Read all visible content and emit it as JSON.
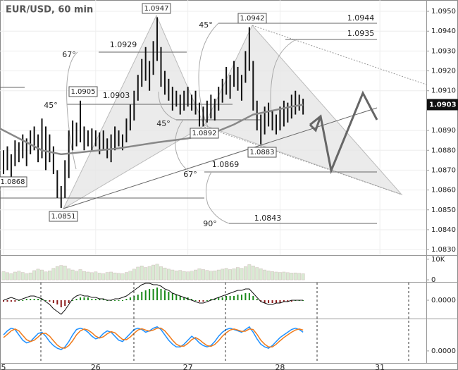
{
  "title": "EUR/USD, 60 min",
  "annotations": [
    "1.0947",
    "1.0942",
    "1.0905",
    "1.0892",
    "1.0883",
    "1.0851",
    "1.0868",
    "1.0929",
    "1.0903",
    "1.0944",
    "1.0935",
    "1.0869",
    "1.0843",
    "67°",
    "45°",
    "45°",
    "45°",
    "67°",
    "90°"
  ],
  "chart_data": [
    {
      "type": "ohlc",
      "color": "#111",
      "xlim": [
        -0.92,
        110.08
      ],
      "xticks": [
        {
          "value": 0,
          "label": "5"
        },
        {
          "value": 24,
          "label": "26"
        },
        {
          "value": 48,
          "label": "27"
        },
        {
          "value": 72,
          "label": "28"
        },
        {
          "value": 98,
          "label": "31"
        }
      ],
      "ylim": [
        1.08272,
        1.09557
      ],
      "yticks": [
        {
          "value": 1.083,
          "label": "1.0830"
        },
        {
          "value": 1.084,
          "label": "1.0840"
        },
        {
          "value": 1.085,
          "label": "1.0850"
        },
        {
          "value": 1.086,
          "label": "1.0860"
        },
        {
          "value": 1.087,
          "label": "1.0870"
        },
        {
          "value": 1.088,
          "label": "1.0880"
        },
        {
          "value": 1.089,
          "label": "1.0890"
        },
        {
          "value": 1.091,
          "label": "1.0910"
        },
        {
          "value": 1.092,
          "label": "1.0920"
        },
        {
          "value": 1.093,
          "label": "1.0930"
        },
        {
          "value": 1.094,
          "label": "1.0940"
        },
        {
          "value": 1.095,
          "label": "1.0950"
        }
      ],
      "last_price": {
        "value": 1.0903,
        "label": "1.0903"
      },
      "grid": true,
      "low": [
        1.0868,
        1.087,
        1.0866,
        1.0872,
        1.0874,
        1.0876,
        1.0872,
        1.0878,
        1.088,
        1.0874,
        1.0876,
        1.087,
        1.0874,
        1.0868,
        1.0856,
        1.0851,
        1.0856,
        1.0866,
        1.088,
        1.0882,
        1.0884,
        1.088,
        1.0882,
        1.088,
        1.0882,
        1.0878,
        1.088,
        1.0876,
        1.0874,
        1.088,
        1.0882,
        1.088,
        1.0884,
        1.089,
        1.0895,
        1.0905,
        1.0912,
        1.0915,
        1.091,
        1.0918,
        1.0925,
        1.0912,
        1.0908,
        1.0905,
        1.09,
        1.0902,
        1.0898,
        1.09,
        1.0902,
        1.09,
        1.0898,
        1.0892,
        1.0892,
        1.0894,
        1.0896,
        1.0895,
        1.09,
        1.0904,
        1.0908,
        1.0906,
        1.0912,
        1.091,
        1.0905,
        1.0914,
        1.092,
        1.09,
        1.089,
        1.0883,
        1.0888,
        1.0892,
        1.089,
        1.0888,
        1.089,
        1.0892,
        1.0894,
        1.0896,
        1.0898,
        1.09,
        1.0898
      ],
      "high": [
        1.088,
        1.0882,
        1.0878,
        1.0885,
        1.0884,
        1.0888,
        1.0886,
        1.089,
        1.0892,
        1.0888,
        1.0896,
        1.0892,
        1.0888,
        1.0882,
        1.087,
        1.0862,
        1.0875,
        1.089,
        1.0895,
        1.0894,
        1.0905,
        1.0892,
        1.089,
        1.0891,
        1.089,
        1.0889,
        1.089,
        1.0886,
        1.0888,
        1.0892,
        1.089,
        1.0888,
        1.0896,
        1.0903,
        1.091,
        1.0918,
        1.0926,
        1.0932,
        1.0925,
        1.0935,
        1.0947,
        1.0932,
        1.092,
        1.0916,
        1.0912,
        1.091,
        1.0908,
        1.091,
        1.0912,
        1.0908,
        1.091,
        1.0904,
        1.0902,
        1.0905,
        1.0908,
        1.0906,
        1.0912,
        1.0916,
        1.0922,
        1.0918,
        1.0925,
        1.0922,
        1.0918,
        1.093,
        1.0942,
        1.0925,
        1.0905,
        1.0898,
        1.0902,
        1.0904,
        1.09,
        1.0898,
        1.0902,
        1.0905,
        1.0904,
        1.0908,
        1.091,
        1.0908,
        1.0906
      ],
      "ma": {
        "color": "#888",
        "x": [
          -1,
          5,
          10,
          15,
          20,
          30,
          40,
          48,
          55,
          60,
          65,
          70,
          75,
          78
        ],
        "values": [
          1.0891,
          1.0885,
          1.088,
          1.0878,
          1.0879,
          1.0881,
          1.0884,
          1.0886,
          1.0889,
          1.0893,
          1.0898,
          1.09,
          1.0902,
          1.0903
        ]
      }
    },
    {
      "type": "bar",
      "color": "#d9ead3",
      "ylim": [
        -1000,
        12000
      ],
      "yticks": [
        {
          "value": 10000,
          "label": "10K"
        },
        0
      ],
      "values": [
        4000,
        3500,
        3000,
        3800,
        4200,
        3600,
        3000,
        3400,
        4500,
        5200,
        4800,
        3900,
        4400,
        5600,
        6500,
        7000,
        6800,
        5400,
        4800,
        4200,
        5000,
        4100,
        3800,
        3500,
        3900,
        3300,
        3000,
        3600,
        3800,
        3400,
        3200,
        3000,
        3600,
        4200,
        5200,
        6200,
        6800,
        6000,
        6500,
        7200,
        7600,
        6400,
        5800,
        5200,
        4800,
        4400,
        4600,
        4100,
        3900,
        4200,
        4800,
        5400,
        5000,
        4600,
        4200,
        4400,
        4800,
        5200,
        5600,
        5000,
        5400,
        6000,
        5600,
        6400,
        7400,
        6800,
        6000,
        5400,
        4800,
        4400,
        4000,
        3800,
        3600,
        3800,
        3500,
        3300,
        3400,
        3200,
        3000
      ]
    },
    {
      "type": "histogram-line",
      "colors": {
        "up": "#1a8a1a",
        "down": "#8b1a1a",
        "line": "#111"
      },
      "ylim": [
        -0.0013,
        0.0013
      ],
      "yticks": [
        {
          "value": 0,
          "label": "0.0000"
        }
      ],
      "values": [
        -0.0001,
        -0.0001,
        -0.0001,
        -0.0001,
        0,
        0,
        0.0001,
        0.0001,
        0.0001,
        0.0001,
        0.0001,
        0,
        -0.0001,
        -0.0002,
        -0.0003,
        -0.0005,
        -0.0004,
        -0.0002,
        0,
        0.0001,
        0.0002,
        0.0002,
        0.0002,
        0.0001,
        0.0001,
        0.0001,
        0.0001,
        0,
        0,
        0,
        0,
        0,
        0.0001,
        0.0002,
        0.0003,
        0.0004,
        0.0006,
        0.0007,
        0.0008,
        0.0008,
        0.0009,
        0.0008,
        0.0007,
        0.0006,
        0.0005,
        0.0004,
        0.0003,
        0.0002,
        0.0002,
        0.0001,
        0,
        -0.0001,
        -0.0001,
        0,
        0.0001,
        0.0001,
        0.0002,
        0.0002,
        0.0003,
        0.0003,
        0.0003,
        0.0004,
        0.0004,
        0.0005,
        0.0005,
        0.0003,
        0.0001,
        -0.0001,
        -0.0002,
        -0.0002,
        -0.0002,
        -0.0002,
        -0.0002,
        -0.0001,
        -0.0001,
        -0.0001,
        0,
        0,
        0
      ],
      "line": [
        0,
        0.0001,
        0.0002,
        0.0001,
        0,
        0.0001,
        0.0002,
        0.0003,
        0.0003,
        0.0002,
        0.0001,
        -0.0001,
        -0.0003,
        -0.0006,
        -0.0008,
        -0.001,
        -0.0007,
        -0.0003,
        0.0001,
        0.0003,
        0.0004,
        0.0003,
        0.0003,
        0.0002,
        0.0002,
        0.0001,
        0.0001,
        0,
        0,
        0.0001,
        0.0001,
        0.0002,
        0.0003,
        0.0005,
        0.0007,
        0.0009,
        0.0011,
        0.0012,
        0.0012,
        0.0011,
        0.0011,
        0.001,
        0.0008,
        0.0007,
        0.0005,
        0.0004,
        0.0003,
        0.0002,
        0.0001,
        0,
        -0.0001,
        -0.0002,
        -0.0002,
        -0.0001,
        0,
        0.0001,
        0.0002,
        0.0003,
        0.0004,
        0.0005,
        0.0006,
        0.0007,
        0.0007,
        0.0008,
        0.0008,
        0.0005,
        0.0002,
        -0.0001,
        -0.0002,
        -0.0003,
        -0.0003,
        -0.0002,
        -0.0002,
        -0.0001,
        -0.0001,
        0,
        0,
        0,
        0
      ]
    },
    {
      "type": "line",
      "ylim": [
        -45,
        121
      ],
      "yticks": [
        {
          "value": 0,
          "label": "0.0000"
        }
      ],
      "series": [
        {
          "color": "#1e90ff",
          "values": [
            60,
            75,
            85,
            80,
            60,
            40,
            30,
            35,
            50,
            65,
            70,
            55,
            35,
            20,
            10,
            5,
            15,
            35,
            60,
            80,
            85,
            80,
            70,
            55,
            45,
            50,
            65,
            75,
            70,
            55,
            40,
            35,
            50,
            65,
            80,
            85,
            80,
            70,
            75,
            85,
            90,
            80,
            60,
            40,
            25,
            15,
            15,
            25,
            40,
            55,
            45,
            30,
            20,
            15,
            20,
            35,
            55,
            70,
            80,
            85,
            80,
            75,
            70,
            80,
            90,
            70,
            45,
            25,
            15,
            10,
            20,
            35,
            50,
            60,
            70,
            80,
            85,
            80,
            70
          ]
        },
        {
          "color": "#f07a1a",
          "values": [
            50,
            62,
            75,
            82,
            75,
            58,
            42,
            35,
            40,
            52,
            65,
            66,
            55,
            38,
            22,
            12,
            10,
            20,
            38,
            60,
            75,
            82,
            78,
            68,
            55,
            48,
            53,
            64,
            72,
            68,
            55,
            43,
            42,
            52,
            66,
            78,
            83,
            78,
            74,
            78,
            85,
            85,
            75,
            58,
            40,
            25,
            18,
            18,
            28,
            42,
            50,
            42,
            30,
            20,
            17,
            24,
            38,
            55,
            68,
            78,
            82,
            78,
            73,
            74,
            82,
            80,
            62,
            40,
            25,
            15,
            15,
            25,
            38,
            50,
            60,
            70,
            78,
            82,
            78
          ]
        }
      ]
    }
  ]
}
